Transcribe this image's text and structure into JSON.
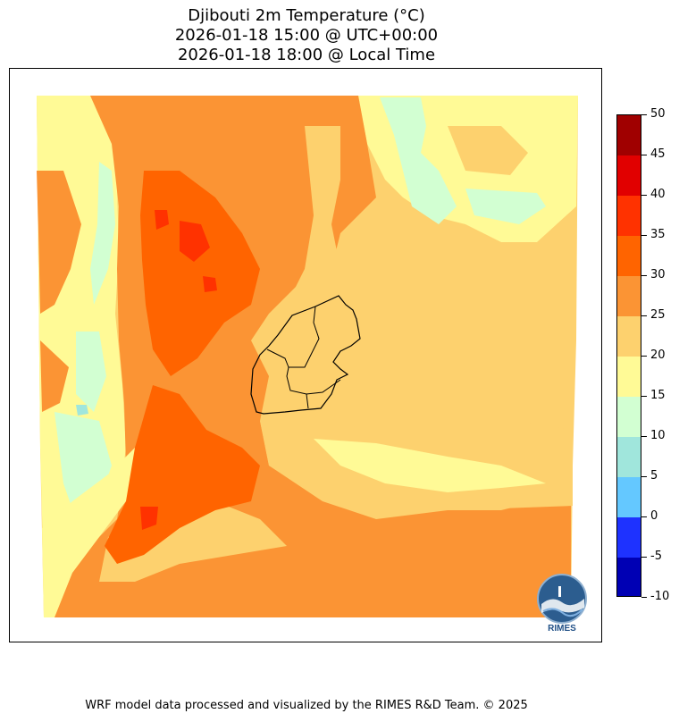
{
  "title": {
    "line1": "Djibouti 2m Temperature (°C)",
    "line2": "2026-01-18 15:00 @ UTC+00:00",
    "line3": "2026-01-18 18:00 @ Local Time"
  },
  "colorbar": {
    "levels": [
      "-10",
      "-5",
      "0",
      "5",
      "10",
      "15",
      "20",
      "25",
      "30",
      "35",
      "40",
      "45",
      "50"
    ],
    "colors": [
      "#0000b4",
      "#1e32ff",
      "#64c8ff",
      "#a0e6dc",
      "#d2ffd2",
      "#fffa96",
      "#fdd16e",
      "#fb9434",
      "#ff6400",
      "#ff3200",
      "#e10000",
      "#a00000"
    ]
  },
  "map": {
    "fill_colors": {
      "t15_20": "#fffa96",
      "t10_15": "#d2ffd2",
      "t5_10": "#a0e6dc",
      "t20_25": "#fdd16e",
      "t25_30": "#fb9434",
      "t30_35": "#ff6400",
      "t35_40": "#ff3200"
    },
    "border_color": "#000000"
  },
  "logo": {
    "text": "RIMES"
  },
  "footer": "WRF model data processed and visualized by the RIMES R&D Team. © 2025"
}
